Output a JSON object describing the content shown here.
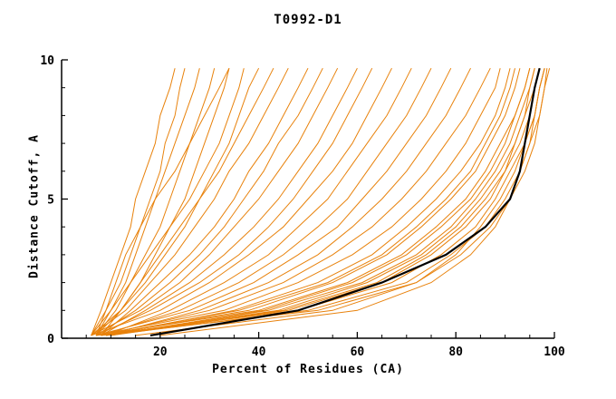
{
  "chart": {
    "title": "T0992-D1",
    "xlabel": "Percent of Residues (CA)",
    "ylabel": "Distance Cutoff, A"
  },
  "chart_data": {
    "type": "line",
    "title": "T0992-D1",
    "xlabel": "Percent of Residues (CA)",
    "ylabel": "Distance Cutoff, A",
    "xlim": [
      0,
      100
    ],
    "ylim": [
      0,
      10
    ],
    "x_ticks": [
      20,
      40,
      60,
      80,
      100
    ],
    "x_tick_labels": [
      "20",
      "40",
      "60",
      "80",
      "100"
    ],
    "x_minor_step": 5,
    "y_ticks": [
      0,
      5,
      10
    ],
    "y_tick_labels": [
      "0",
      "5",
      "10"
    ],
    "y_minor_step": 1,
    "grid": false,
    "legend": "none",
    "colors": {
      "models": "#e8820c",
      "reference": "#000000"
    },
    "y_samples": [
      0.1,
      1,
      2,
      3,
      4,
      5,
      6,
      7,
      8,
      9,
      9.7
    ],
    "orange_series_x": [
      [
        6,
        8,
        10,
        12,
        14,
        15,
        17,
        19,
        20,
        22,
        23
      ],
      [
        7,
        9,
        12,
        14,
        16,
        18,
        20,
        21,
        23,
        24,
        25
      ],
      [
        6,
        10,
        13,
        15,
        17,
        19,
        21,
        23,
        25,
        27,
        28
      ],
      [
        7,
        11,
        14,
        17,
        20,
        22,
        24,
        26,
        28,
        30,
        31
      ],
      [
        6,
        9,
        11,
        13,
        16,
        19,
        23,
        26,
        29,
        32,
        34
      ],
      [
        8,
        12,
        16,
        19,
        22,
        25,
        27,
        29,
        31,
        33,
        34
      ],
      [
        7,
        10,
        14,
        18,
        22,
        26,
        29,
        32,
        34,
        36,
        37
      ],
      [
        6,
        12,
        17,
        21,
        25,
        28,
        31,
        34,
        36,
        38,
        40
      ],
      [
        7,
        12,
        16,
        20,
        24,
        28,
        32,
        35,
        38,
        41,
        43
      ],
      [
        6,
        13,
        18,
        23,
        27,
        31,
        34,
        38,
        41,
        44,
        46
      ],
      [
        8,
        14,
        20,
        26,
        31,
        35,
        38,
        42,
        45,
        48,
        50
      ],
      [
        7,
        15,
        22,
        28,
        33,
        37,
        41,
        44,
        48,
        51,
        53
      ],
      [
        6,
        16,
        24,
        30,
        35,
        40,
        44,
        48,
        51,
        54,
        56
      ],
      [
        8,
        17,
        26,
        33,
        39,
        44,
        48,
        52,
        55,
        58,
        60
      ],
      [
        7,
        18,
        28,
        36,
        42,
        47,
        51,
        55,
        58,
        61,
        63
      ],
      [
        6,
        20,
        30,
        38,
        45,
        50,
        55,
        59,
        62,
        65,
        67
      ],
      [
        9,
        22,
        33,
        42,
        48,
        54,
        58,
        62,
        66,
        69,
        71
      ],
      [
        8,
        24,
        36,
        45,
        52,
        58,
        62,
        66,
        70,
        73,
        75
      ],
      [
        7,
        26,
        39,
        48,
        56,
        61,
        66,
        70,
        74,
        77,
        79
      ],
      [
        9,
        28,
        42,
        52,
        59,
        65,
        70,
        74,
        78,
        81,
        83
      ],
      [
        8,
        30,
        45,
        55,
        63,
        69,
        74,
        78,
        82,
        85,
        87
      ],
      [
        7,
        33,
        48,
        59,
        67,
        73,
        78,
        82,
        85,
        88,
        89
      ],
      [
        9,
        35,
        52,
        63,
        70,
        76,
        81,
        85,
        88,
        90,
        91
      ],
      [
        8,
        38,
        55,
        66,
        73,
        79,
        84,
        87,
        90,
        92,
        93
      ],
      [
        7,
        40,
        58,
        69,
        76,
        82,
        86,
        89,
        92,
        94,
        95
      ],
      [
        9,
        42,
        61,
        72,
        79,
        84,
        88,
        91,
        93,
        95,
        96
      ],
      [
        8,
        45,
        64,
        74,
        81,
        86,
        90,
        92,
        94,
        96,
        97
      ],
      [
        7,
        48,
        67,
        77,
        84,
        88,
        91,
        94,
        96,
        97,
        98
      ],
      [
        9,
        50,
        70,
        79,
        86,
        90,
        93,
        95,
        97,
        98,
        98.5
      ],
      [
        8,
        52,
        72,
        81,
        87,
        91,
        94,
        96,
        97,
        98,
        99
      ],
      [
        10,
        46,
        65,
        75,
        82,
        87,
        90,
        93,
        95,
        96,
        97
      ],
      [
        9,
        44,
        62,
        73,
        80,
        85,
        89,
        92,
        94,
        95,
        96
      ],
      [
        8,
        36,
        54,
        65,
        72,
        78,
        83,
        86,
        89,
        91,
        92
      ],
      [
        10,
        41,
        59,
        70,
        77,
        83,
        87,
        90,
        92,
        94,
        95
      ],
      [
        20,
        60,
        75,
        83,
        88,
        91,
        93,
        95,
        96,
        97,
        98
      ],
      [
        15,
        55,
        72,
        80,
        85,
        89,
        92,
        94,
        96,
        97,
        98
      ]
    ],
    "black_series_x": [
      18,
      48,
      65,
      78,
      86,
      91,
      93,
      94,
      95,
      96,
      97
    ]
  }
}
